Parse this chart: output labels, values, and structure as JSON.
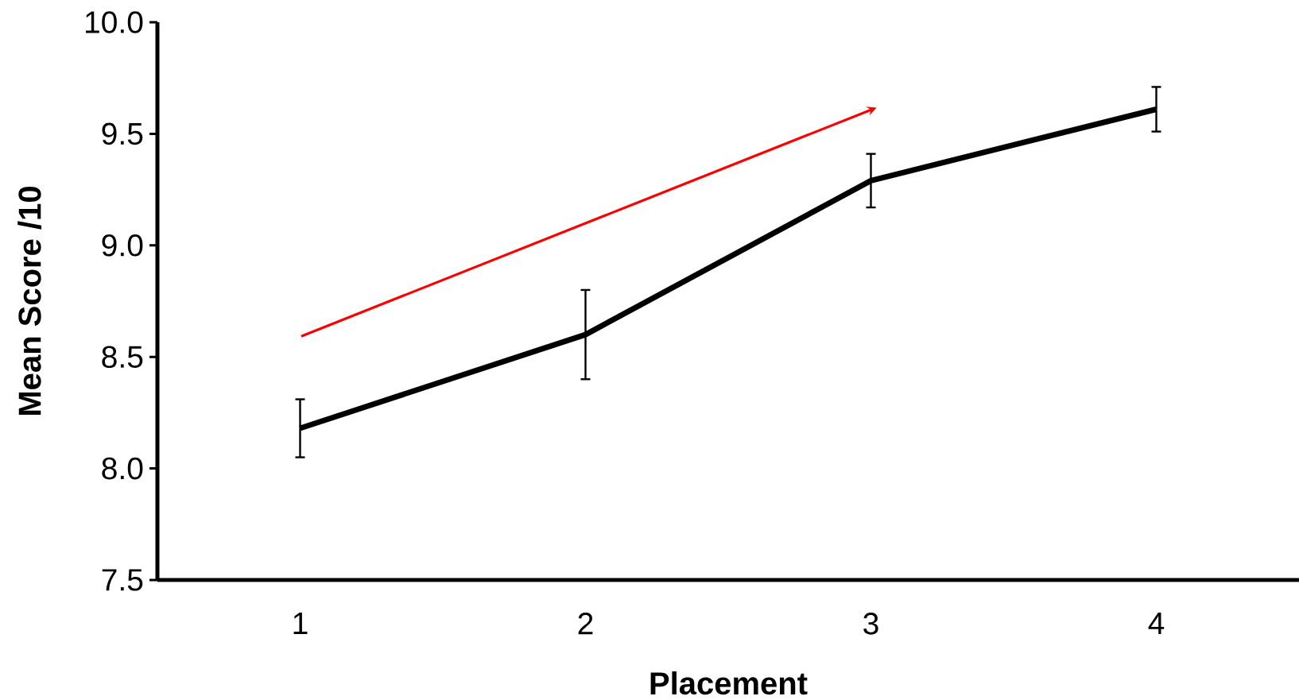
{
  "chart_data": {
    "type": "line",
    "xlabel": "Placement",
    "ylabel": "Mean Score /10",
    "categories": [
      "1",
      "2",
      "3",
      "4"
    ],
    "values": [
      8.18,
      8.6,
      9.29,
      9.61
    ],
    "errors": [
      0.13,
      0.2,
      0.12,
      0.1
    ],
    "color": "#000000",
    "ylim": [
      7.5,
      10.0
    ],
    "yticks": [
      {
        "value": 7.5,
        "label": "7.5"
      },
      {
        "value": 8.0,
        "label": "8.0"
      },
      {
        "value": 8.5,
        "label": "8.5"
      },
      {
        "value": 9.0,
        "label": "9.0"
      },
      {
        "value": 9.5,
        "label": "9.5"
      },
      {
        "value": 10.0,
        "label": "10.0"
      }
    ]
  }
}
